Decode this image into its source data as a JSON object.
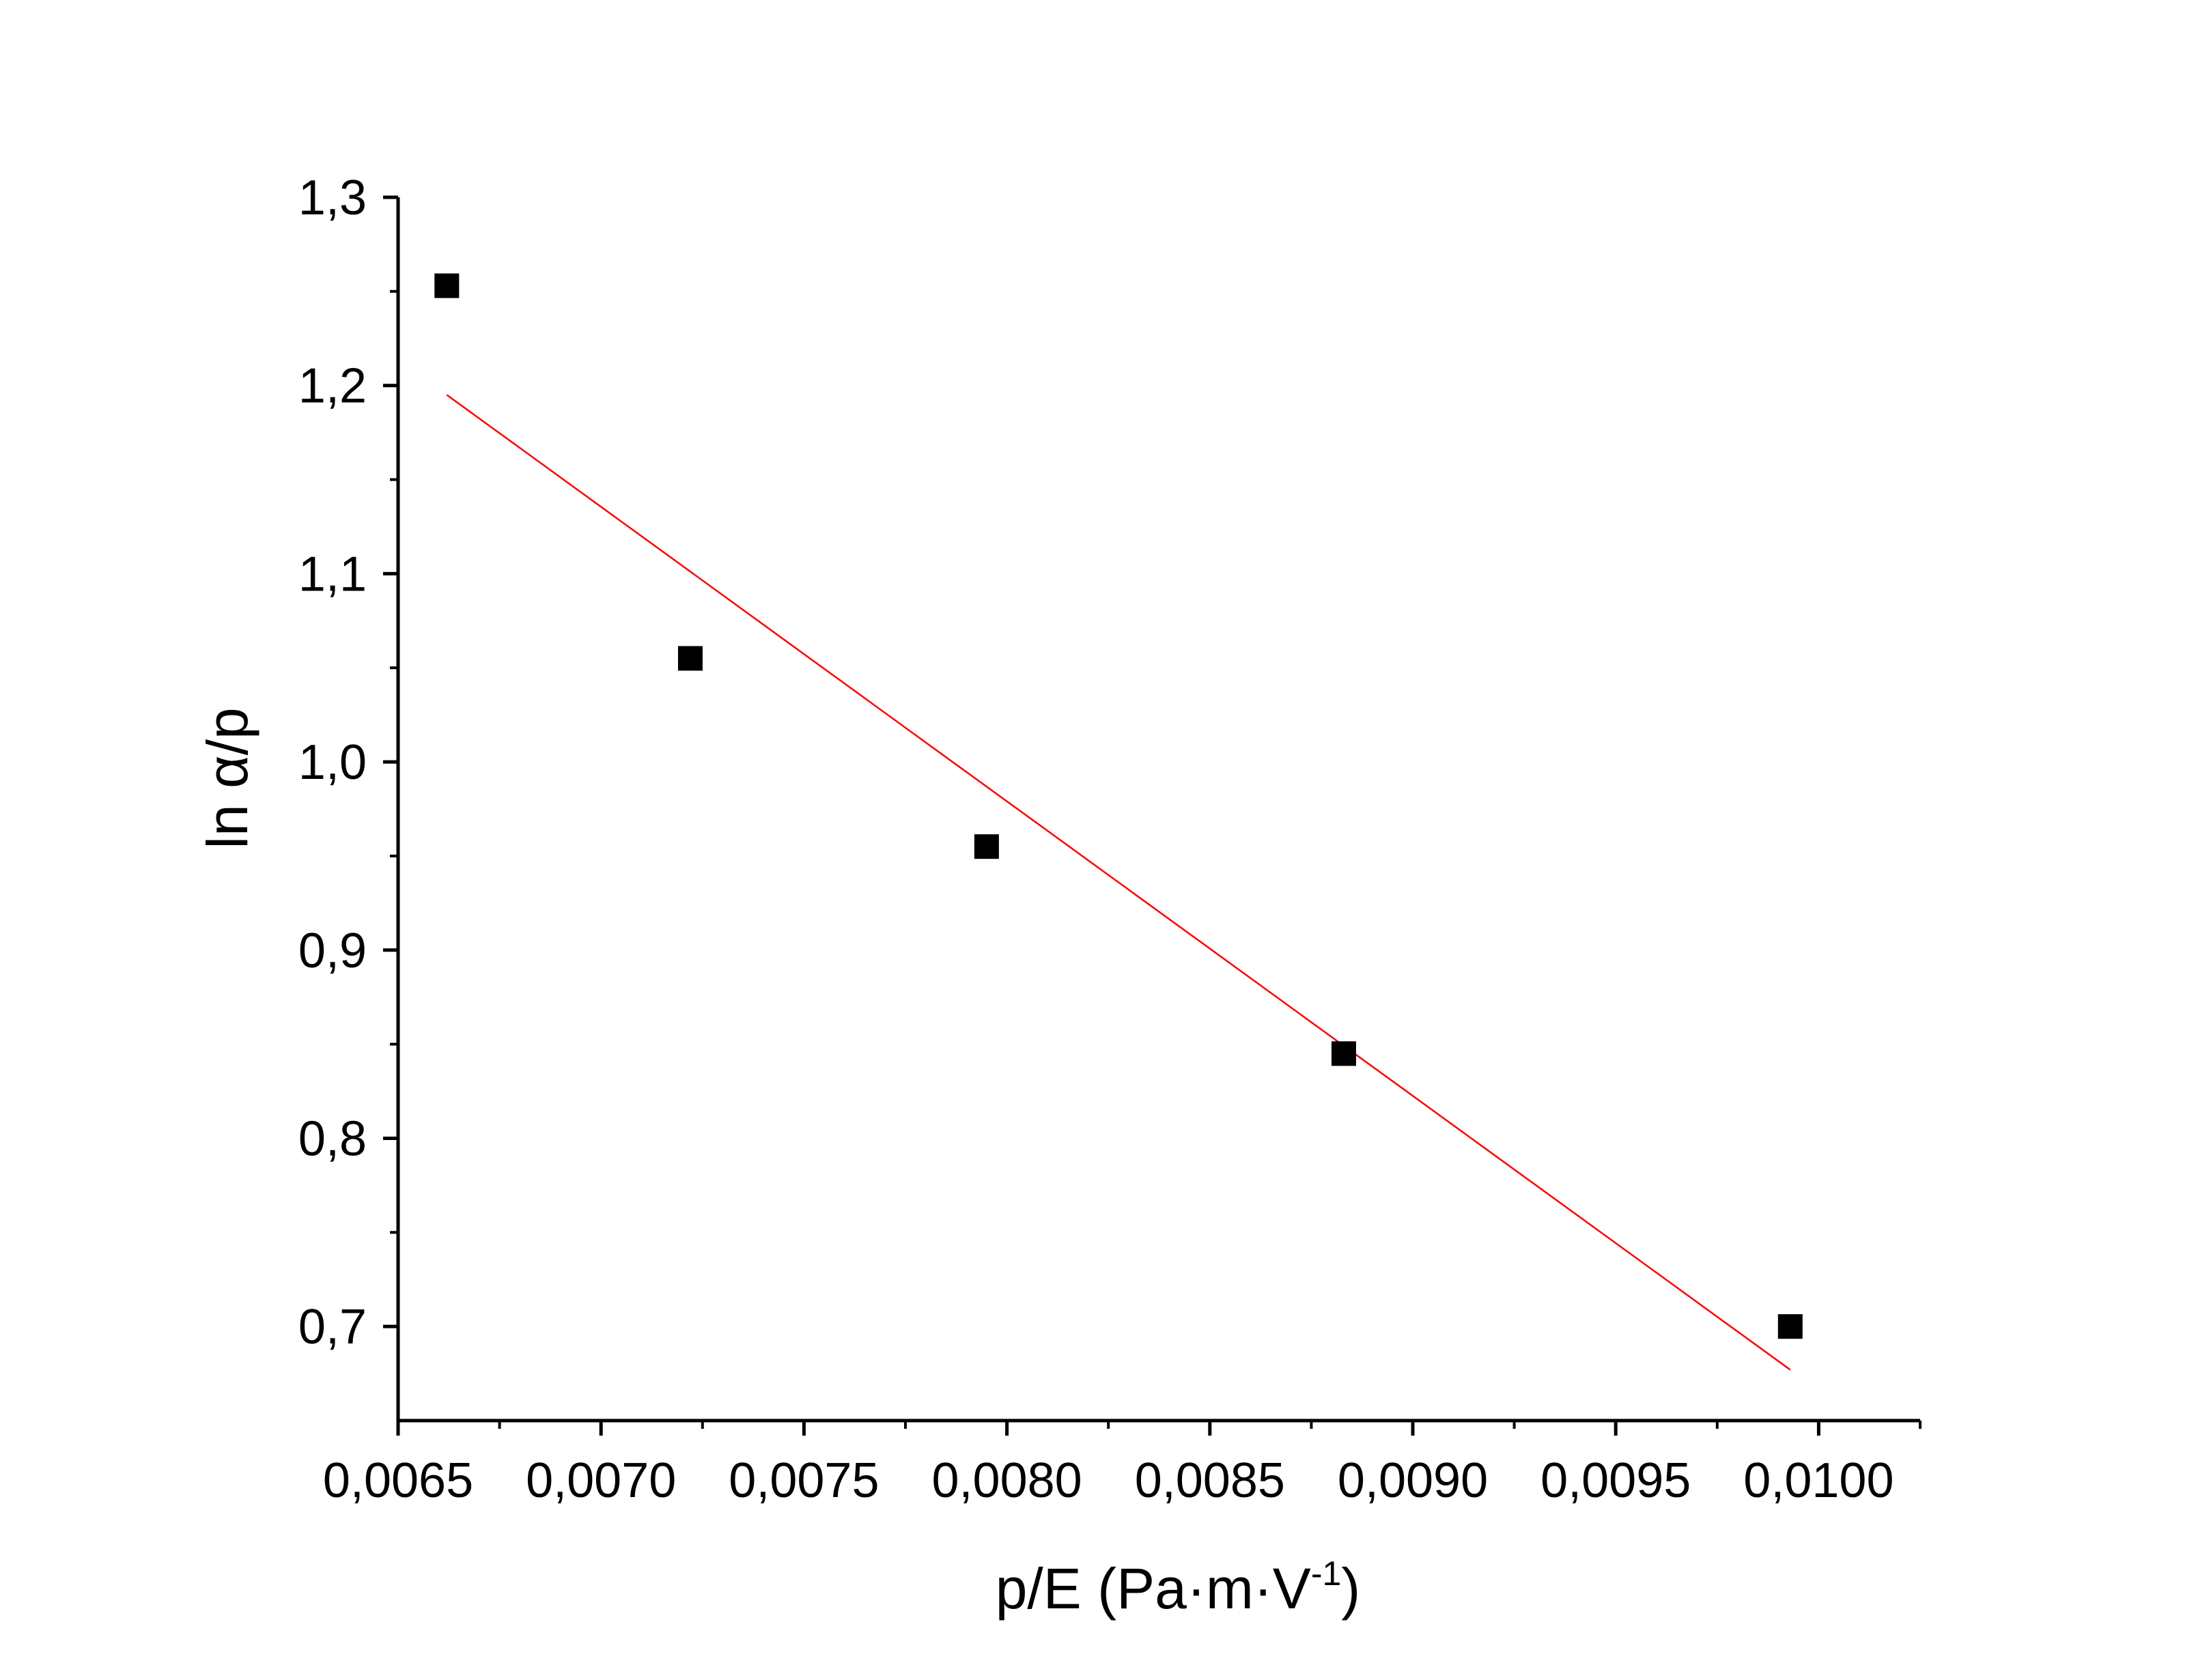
{
  "chart_data": {
    "type": "scatter",
    "xlabel": {
      "main": "p/E (Pa·m·V",
      "superscript": "-1",
      "suffix": ")"
    },
    "ylabel": "ln α/p",
    "xlim": [
      0.0065,
      0.01025
    ],
    "ylim": [
      0.65,
      1.3
    ],
    "x_ticks": [
      {
        "value": 0.0065,
        "label": "0,0065"
      },
      {
        "value": 0.007,
        "label": "0,0070"
      },
      {
        "value": 0.0075,
        "label": "0,0075"
      },
      {
        "value": 0.008,
        "label": "0,0080"
      },
      {
        "value": 0.0085,
        "label": "0,0085"
      },
      {
        "value": 0.009,
        "label": "0,0090"
      },
      {
        "value": 0.0095,
        "label": "0,0095"
      },
      {
        "value": 0.01,
        "label": "0,0100"
      }
    ],
    "y_ticks": [
      {
        "value": 0.7,
        "label": "0,7"
      },
      {
        "value": 0.8,
        "label": "0,8"
      },
      {
        "value": 0.9,
        "label": "0,9"
      },
      {
        "value": 1.0,
        "label": "1,0"
      },
      {
        "value": 1.1,
        "label": "1,1"
      },
      {
        "value": 1.2,
        "label": "1,2"
      },
      {
        "value": 1.3,
        "label": "1,3"
      }
    ],
    "points": [
      {
        "x": 0.00662,
        "y": 1.253
      },
      {
        "x": 0.00722,
        "y": 1.055
      },
      {
        "x": 0.00795,
        "y": 0.955
      },
      {
        "x": 0.00883,
        "y": 0.845
      },
      {
        "x": 0.00993,
        "y": 0.7
      }
    ],
    "fit_line": {
      "x": [
        0.00662,
        0.00993
      ],
      "y": [
        1.195,
        0.677
      ]
    },
    "grid": false,
    "marker_color": "#000000",
    "fit_color": "#ff0000"
  }
}
